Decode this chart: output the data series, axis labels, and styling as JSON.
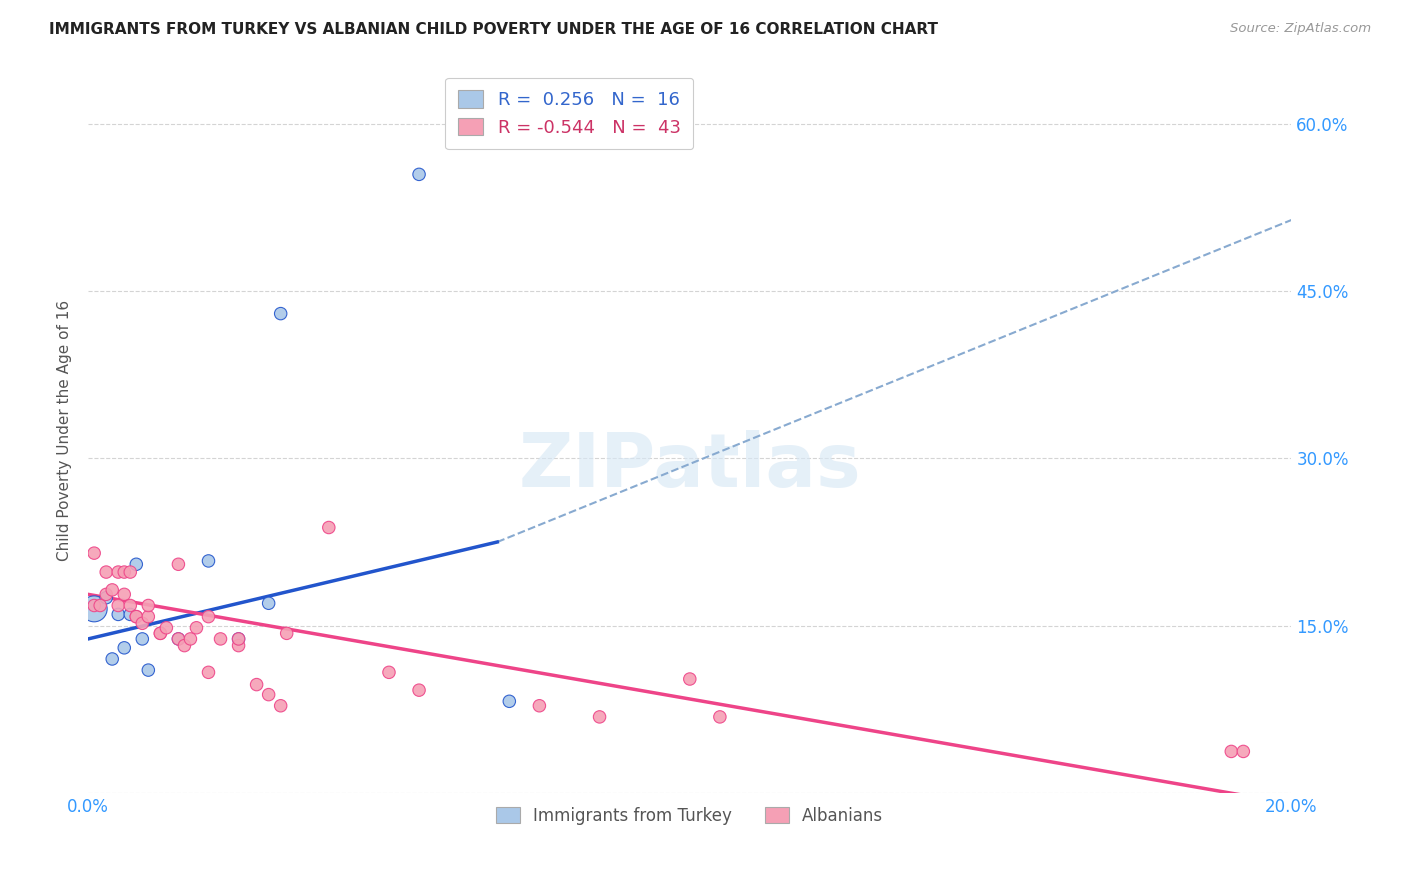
{
  "title": "IMMIGRANTS FROM TURKEY VS ALBANIAN CHILD POVERTY UNDER THE AGE OF 16 CORRELATION CHART",
  "source": "Source: ZipAtlas.com",
  "ylabel": "Child Poverty Under the Age of 16",
  "xlim": [
    0.0,
    0.2
  ],
  "ylim": [
    0.0,
    0.65
  ],
  "ytick_vals": [
    0.0,
    0.15,
    0.3,
    0.45,
    0.6
  ],
  "xtick_vals": [
    0.0,
    0.04,
    0.08,
    0.12,
    0.16,
    0.2
  ],
  "grid_color": "#d0d0d0",
  "background_color": "#ffffff",
  "blue_color": "#aac8e8",
  "pink_color": "#f5a0b5",
  "blue_line_color": "#2255cc",
  "pink_line_color": "#ee4488",
  "dashed_line_color": "#88aad0",
  "blue_points_x": [
    0.001,
    0.003,
    0.004,
    0.005,
    0.006,
    0.007,
    0.008,
    0.009,
    0.01,
    0.015,
    0.02,
    0.025,
    0.03,
    0.032,
    0.055,
    0.07
  ],
  "blue_points_y": [
    0.165,
    0.175,
    0.12,
    0.16,
    0.13,
    0.16,
    0.205,
    0.138,
    0.11,
    0.138,
    0.208,
    0.138,
    0.17,
    0.43,
    0.555,
    0.082
  ],
  "blue_sizes": [
    350,
    80,
    80,
    80,
    80,
    80,
    80,
    80,
    80,
    80,
    80,
    80,
    80,
    80,
    80,
    80
  ],
  "pink_points_x": [
    0.001,
    0.001,
    0.002,
    0.003,
    0.003,
    0.004,
    0.005,
    0.005,
    0.006,
    0.006,
    0.007,
    0.007,
    0.008,
    0.008,
    0.009,
    0.01,
    0.01,
    0.012,
    0.012,
    0.013,
    0.015,
    0.015,
    0.016,
    0.017,
    0.018,
    0.02,
    0.02,
    0.022,
    0.025,
    0.025,
    0.028,
    0.03,
    0.032,
    0.033,
    0.04,
    0.05,
    0.055,
    0.075,
    0.085,
    0.1,
    0.105,
    0.19,
    0.192
  ],
  "pink_points_y": [
    0.168,
    0.215,
    0.168,
    0.178,
    0.198,
    0.182,
    0.168,
    0.198,
    0.198,
    0.178,
    0.168,
    0.198,
    0.158,
    0.158,
    0.152,
    0.158,
    0.168,
    0.143,
    0.143,
    0.148,
    0.138,
    0.205,
    0.132,
    0.138,
    0.148,
    0.158,
    0.108,
    0.138,
    0.132,
    0.138,
    0.097,
    0.088,
    0.078,
    0.143,
    0.238,
    0.108,
    0.092,
    0.078,
    0.068,
    0.102,
    0.068,
    0.037,
    0.037
  ],
  "pink_sizes": [
    80,
    80,
    80,
    80,
    80,
    80,
    80,
    80,
    80,
    80,
    80,
    80,
    80,
    80,
    80,
    80,
    80,
    80,
    80,
    80,
    80,
    80,
    80,
    80,
    80,
    80,
    80,
    80,
    80,
    80,
    80,
    80,
    80,
    80,
    80,
    80,
    80,
    80,
    80,
    80,
    80,
    80,
    80
  ],
  "blue_line_x": [
    0.0,
    0.068
  ],
  "blue_line_y": [
    0.138,
    0.225
  ],
  "dashed_line_x": [
    0.068,
    0.205
  ],
  "dashed_line_y": [
    0.225,
    0.525
  ],
  "pink_line_x": [
    0.0,
    0.198
  ],
  "pink_line_y": [
    0.178,
    -0.008
  ],
  "legend_blue_label": "R =  0.256   N =  16",
  "legend_pink_label": "R = -0.544   N =  43",
  "legend_bottom_blue": "Immigrants from Turkey",
  "legend_bottom_pink": "Albanians",
  "legend_R_blue": "0.256",
  "legend_N_blue": "16",
  "legend_R_pink": "-0.544",
  "legend_N_pink": "43"
}
